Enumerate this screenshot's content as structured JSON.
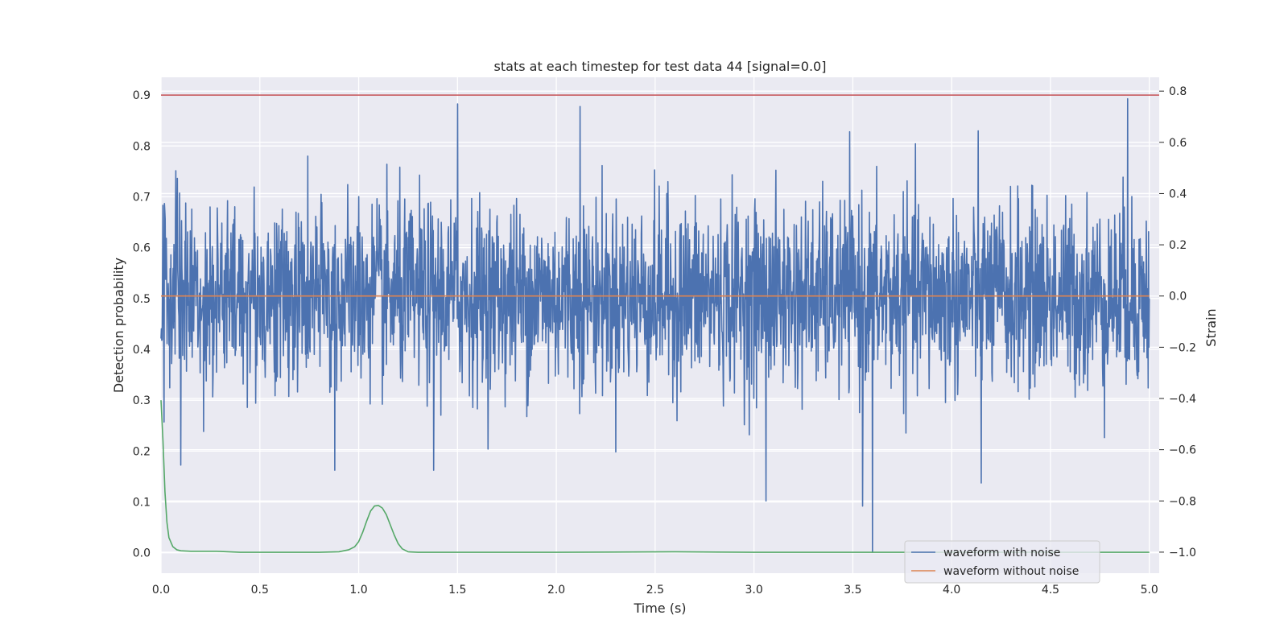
{
  "chart_data": {
    "type": "line",
    "title": "stats at each timestep for test data 44 [signal=0.0]",
    "xlabel": "Time (s)",
    "ylabel": "Detection probability",
    "y2label": "Strain",
    "xlim": [
      0.0,
      5.05
    ],
    "ylim": [
      -0.04,
      0.935
    ],
    "y2lim": [
      -1.082,
      0.854
    ],
    "xticks": [
      "0.0",
      "0.5",
      "1.0",
      "1.5",
      "2.0",
      "2.5",
      "3.0",
      "3.5",
      "4.0",
      "4.5",
      "5.0"
    ],
    "yticks": [
      "0.0",
      "0.1",
      "0.2",
      "0.3",
      "0.4",
      "0.5",
      "0.6",
      "0.7",
      "0.8",
      "0.9"
    ],
    "y2ticks": [
      "−1.0",
      "−0.8",
      "−0.6",
      "−0.4",
      "−0.2",
      "0.0",
      "0.2",
      "0.4",
      "0.6",
      "0.8"
    ],
    "grid": true,
    "legend_position": "lower-right",
    "series": [
      {
        "name": "waveform with noise",
        "axis": "right",
        "color": "#4c72b0",
        "x_range": [
          0.0,
          5.0
        ],
        "noise_std": 0.18,
        "peaks": [
          {
            "x": 1.5,
            "y": 0.75
          },
          {
            "x": 2.12,
            "y": 0.74
          },
          {
            "x": 4.89,
            "y": 0.77
          },
          {
            "x": 3.55,
            "y": -0.82
          },
          {
            "x": 3.6,
            "y": -1.0
          },
          {
            "x": 3.06,
            "y": -0.8
          },
          {
            "x": 4.15,
            "y": -0.73
          },
          {
            "x": 0.1,
            "y": -0.66
          },
          {
            "x": 0.88,
            "y": -0.68
          },
          {
            "x": 1.38,
            "y": -0.68
          }
        ]
      },
      {
        "name": "waveform without noise",
        "axis": "right",
        "color": "#dd8452",
        "x": [
          0.0,
          5.0
        ],
        "y": [
          0.0,
          0.0
        ]
      },
      {
        "axis": "left",
        "color": "#55a868",
        "x": [
          0.0,
          0.01,
          0.02,
          0.03,
          0.04,
          0.06,
          0.08,
          0.1,
          0.15,
          0.2,
          0.28,
          0.4,
          0.6,
          0.8,
          0.9,
          0.95,
          0.98,
          1.0,
          1.02,
          1.04,
          1.06,
          1.08,
          1.1,
          1.12,
          1.14,
          1.16,
          1.18,
          1.2,
          1.22,
          1.25,
          1.3,
          1.5,
          2.0,
          2.6,
          3.0,
          3.5,
          4.0,
          4.5,
          5.0
        ],
        "y": [
          0.3,
          0.22,
          0.12,
          0.06,
          0.03,
          0.012,
          0.006,
          0.004,
          0.003,
          0.003,
          0.003,
          0.001,
          0.001,
          0.001,
          0.002,
          0.006,
          0.012,
          0.022,
          0.04,
          0.062,
          0.082,
          0.092,
          0.093,
          0.088,
          0.075,
          0.055,
          0.035,
          0.018,
          0.008,
          0.002,
          0.001,
          0.001,
          0.001,
          0.002,
          0.001,
          0.001,
          0.001,
          0.001,
          0.001
        ]
      },
      {
        "axis": "left",
        "color": "#c44e52",
        "x": [
          0.0,
          5.05
        ],
        "y": [
          0.9,
          0.9
        ]
      }
    ]
  }
}
